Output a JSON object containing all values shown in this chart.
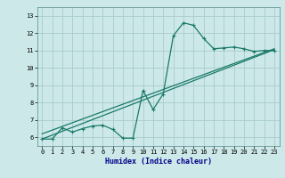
{
  "title": "",
  "xlabel": "Humidex (Indice chaleur)",
  "background_color": "#cce8e8",
  "grid_color": "#aacccc",
  "line_color": "#1a7a6a",
  "xlim": [
    -0.5,
    23.5
  ],
  "ylim": [
    5.5,
    13.5
  ],
  "xticks": [
    0,
    1,
    2,
    3,
    4,
    5,
    6,
    7,
    8,
    9,
    10,
    11,
    12,
    13,
    14,
    15,
    16,
    17,
    18,
    19,
    20,
    21,
    22,
    23
  ],
  "yticks": [
    6,
    7,
    8,
    9,
    10,
    11,
    12,
    13
  ],
  "line1_x": [
    0,
    1,
    2,
    3,
    4,
    5,
    6,
    7,
    8,
    9,
    10,
    11,
    12,
    13,
    14,
    15,
    16,
    17,
    18,
    19,
    20,
    21,
    22,
    23
  ],
  "line1_y": [
    5.9,
    5.9,
    6.55,
    6.3,
    6.5,
    6.65,
    6.7,
    6.45,
    5.95,
    5.95,
    8.7,
    7.6,
    8.5,
    11.85,
    12.6,
    12.45,
    11.7,
    11.1,
    11.15,
    11.2,
    11.1,
    10.95,
    11.0,
    11.0
  ],
  "line2_y_start": 5.9,
  "line2_y_end": 11.05,
  "line3_y_start": 6.2,
  "line3_y_end": 11.1,
  "xlabel_fontsize": 6.0,
  "tick_fontsize": 5.0
}
